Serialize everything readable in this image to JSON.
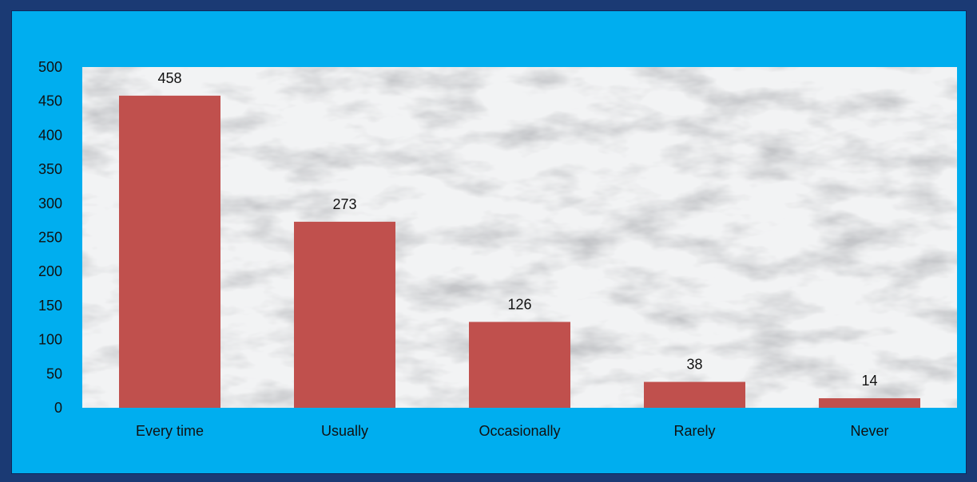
{
  "colors": {
    "page_background": "#1b3a74",
    "chart_background": "#00aeef",
    "bar": "#c0504d",
    "plot_area": "marble-white-gray"
  },
  "chart_data": {
    "type": "bar",
    "categories": [
      "Every time",
      "Usually",
      "Occasionally",
      "Rarely",
      "Never"
    ],
    "values": [
      458,
      273,
      126,
      38,
      14
    ],
    "data_labels": [
      "458",
      "273",
      "126",
      "38",
      "14"
    ],
    "y_ticks": [
      "0",
      "50",
      "100",
      "150",
      "200",
      "250",
      "300",
      "350",
      "400",
      "450",
      "500"
    ],
    "ylim": [
      0,
      500
    ],
    "title": "",
    "xlabel": "",
    "ylabel": "",
    "grid": false,
    "legend": false
  }
}
